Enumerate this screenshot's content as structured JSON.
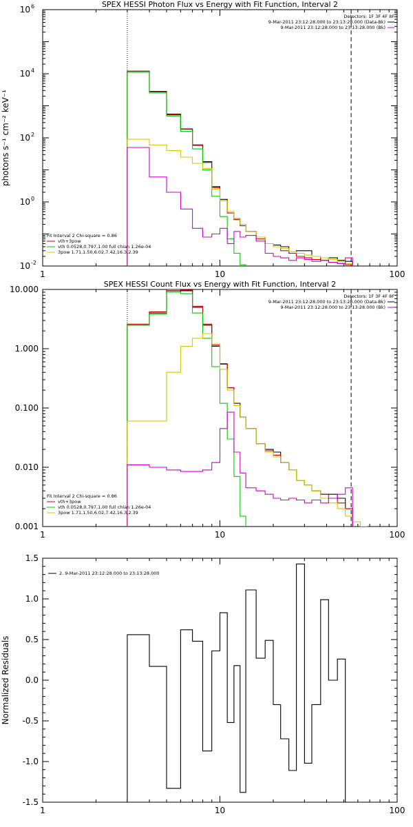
{
  "chart_data": [
    {
      "type": "line",
      "title": "SPEX HESSI Photon Flux vs Energy with Fit Function, Interval 2",
      "ylabel": "photons s⁻¹ cm⁻² keV⁻¹",
      "xlabel": "",
      "x_scale": "log",
      "y_scale": "log",
      "xlim": [
        1,
        100
      ],
      "ylim": [
        0.01,
        1000000
      ],
      "x_ticks": [
        {
          "v": 1,
          "label": "1"
        },
        {
          "v": 10,
          "label": "10"
        },
        {
          "v": 100,
          "label": "100"
        }
      ],
      "y_ticks": [
        {
          "v": 0.01,
          "label": "10",
          "exp": "-2"
        },
        {
          "v": 1,
          "label": "10",
          "exp": "0"
        },
        {
          "v": 100,
          "label": "10",
          "exp": "2"
        },
        {
          "v": 10000,
          "label": "10",
          "exp": "4"
        },
        {
          "v": 1000000,
          "label": "10",
          "exp": "6"
        }
      ],
      "vlines": [
        {
          "x": 3.0,
          "style": "dotted"
        },
        {
          "x": 55,
          "style": "dashed"
        }
      ],
      "legend_right": {
        "header": "Detectors: 1F 3F 4F 8F",
        "entries": [
          {
            "text": "9-Mar-2011 23:12:28.000 to 23:13:28.000 (Data-Bk)",
            "color": "#000000"
          },
          {
            "text": "9-Mar-2011 23:12:28.000 to 23:13:28.000 (Bk)",
            "color": "#cc00cc"
          }
        ]
      },
      "legend_left": {
        "header": "Fit Interval 2   Chi-square = 0.86",
        "entries": [
          {
            "text": "vth+3pow",
            "color": "#cc0000"
          },
          {
            "text": "vth 0.0528,0.797,1.00  full chian 1.26e-04",
            "color": "#00cc00"
          },
          {
            "text": "3pow 1.71,1.50,6.02,7.42,16.3,2.39",
            "color": "#cccc00"
          }
        ]
      },
      "bin_edges": [
        3.0,
        4.0,
        5.0,
        6.0,
        7.0,
        8.0,
        9.0,
        10.0,
        11.0,
        12.0,
        13.0,
        14.0,
        16.0,
        18.0,
        20.0,
        22.0,
        24.5,
        27.0,
        30.0,
        33.0,
        37.0,
        41.0,
        46.0,
        51.0,
        56.0
      ],
      "series": [
        {
          "color": "#000000",
          "values": [
            12000,
            2800,
            550,
            190,
            60,
            18,
            3.0,
            1.2,
            0.5,
            0.3,
            0.2,
            0.12,
            0.08,
            0.05,
            0.045,
            0.04,
            0.025,
            0.03,
            0.03,
            0.02,
            0.015,
            0.018,
            0.015,
            0.014
          ]
        },
        {
          "color": "#cc0000",
          "values": [
            12000,
            2700,
            520,
            185,
            58,
            17,
            2.8,
            1.1,
            0.45,
            0.28,
            0.18,
            0.12,
            0.07,
            0.05,
            0.04,
            0.03,
            0.025,
            0.02,
            0.018,
            0.016,
            0.015,
            0.013,
            0.012,
            0.011
          ]
        },
        {
          "color": "#00cc00",
          "values": [
            11000,
            2500,
            480,
            160,
            45,
            10,
            1.5,
            0.35,
            0.07,
            0.025,
            0.011
          ]
        },
        {
          "color": "#cccc00",
          "values": [
            90,
            60,
            40,
            25,
            16,
            11,
            2.5,
            1.1,
            0.5,
            0.3,
            0.2,
            0.12,
            0.08,
            0.05,
            0.04,
            0.035,
            0.028,
            0.025,
            0.022,
            0.02,
            0.018,
            0.016,
            0.014,
            0.012
          ]
        },
        {
          "color": "#cc00cc",
          "values": [
            50,
            6.0,
            2.0,
            0.6,
            0.15,
            0.08,
            0.1,
            0.15,
            0.05,
            0.12,
            0.08,
            0.09,
            0.06,
            0.025,
            0.02,
            0.018,
            0.015,
            0.018,
            0.016,
            0.014,
            0.015,
            0.013,
            0.012,
            0.018
          ]
        }
      ]
    },
    {
      "type": "line",
      "title": "SPEX HESSI Count Flux vs Energy with Fit Function, Interval 2",
      "ylabel": "",
      "xlabel": "",
      "x_scale": "log",
      "y_scale": "log",
      "xlim": [
        1,
        100
      ],
      "ylim": [
        0.001,
        10.0
      ],
      "x_ticks": [
        {
          "v": 1,
          "label": "1"
        },
        {
          "v": 10,
          "label": "10"
        },
        {
          "v": 100,
          "label": "100"
        }
      ],
      "y_ticks": [
        {
          "v": 0.001,
          "label": "0.001"
        },
        {
          "v": 0.01,
          "label": "0.010"
        },
        {
          "v": 0.1,
          "label": "0.100"
        },
        {
          "v": 1.0,
          "label": "1.000"
        },
        {
          "v": 10.0,
          "label": "10.000"
        }
      ],
      "vlines": [
        {
          "x": 3.0,
          "style": "dotted"
        },
        {
          "x": 55,
          "style": "dashed"
        }
      ],
      "legend_right": {
        "header": "Detectors: 1F 3F 4F 8F",
        "entries": [
          {
            "text": "9-Mar-2011 23:12:28.000 to 23:13:28.000 (Data-Bk)",
            "color": "#000000"
          },
          {
            "text": "9-Mar-2011 23:12:28.000 to 23:13:28.000 (Bk)",
            "color": "#cc00cc"
          }
        ]
      },
      "legend_left": {
        "header": "Fit Interval 2   Chi-square = 0.86",
        "entries": [
          {
            "text": "vth+3pow",
            "color": "#cc0000"
          },
          {
            "text": "vth 0.0528,0.797,1.00  full chian 1.26e-04",
            "color": "#00cc00"
          },
          {
            "text": "3pow 1.71,1.50,6.02,7.42,16.3,2.39",
            "color": "#cccc00"
          }
        ]
      },
      "bin_edges": [
        3.0,
        4.0,
        5.0,
        6.0,
        7.0,
        8.0,
        9.0,
        10.0,
        11.0,
        12.0,
        13.0,
        14.0,
        16.0,
        18.0,
        20.0,
        22.0,
        24.5,
        27.0,
        30.0,
        33.0,
        37.0,
        41.0,
        46.0,
        51.0,
        56.0,
        62.0,
        68.0
      ],
      "series": [
        {
          "color": "#000000",
          "values": [
            2.5,
            4.0,
            9.5,
            9.5,
            5.0,
            2.5,
            1.1,
            0.55,
            0.22,
            0.12,
            0.07,
            0.045,
            0.025,
            0.02,
            0.018,
            0.012,
            0.009,
            0.006,
            0.005,
            0.004,
            0.0035,
            0.0035,
            0.003,
            0.002
          ]
        },
        {
          "color": "#cc0000",
          "values": [
            2.6,
            4.2,
            10.0,
            9.8,
            5.2,
            2.6,
            1.15,
            0.56,
            0.22,
            0.12,
            0.07,
            0.045,
            0.025,
            0.019,
            0.016,
            0.012,
            0.009,
            0.006,
            0.005,
            0.004,
            0.0035,
            0.003,
            0.0025,
            0.002
          ]
        },
        {
          "color": "#00cc00",
          "values": [
            2.5,
            3.8,
            9.0,
            8.5,
            4.0,
            1.5,
            0.5,
            0.12,
            0.03,
            0.007,
            0.0015
          ]
        },
        {
          "color": "#cccc00",
          "values": [
            0.06,
            0.06,
            0.4,
            1.1,
            1.5,
            1.8,
            1.2,
            0.45,
            0.2,
            0.11,
            0.07,
            0.045,
            0.025,
            0.018,
            0.015,
            0.012,
            0.009,
            0.006,
            0.005,
            0.004,
            0.003,
            0.0025,
            0.002,
            0.0015,
            0.0012,
            0.001
          ]
        },
        {
          "color": "#cc00cc",
          "values": [
            0.011,
            0.01,
            0.009,
            0.0085,
            0.0085,
            0.009,
            0.012,
            0.045,
            0.085,
            0.018,
            0.008,
            0.0045,
            0.004,
            0.0035,
            0.003,
            0.0028,
            0.003,
            0.0028,
            0.0025,
            0.0028,
            0.0025,
            0.003,
            0.0035,
            0.0045
          ]
        }
      ]
    },
    {
      "type": "line",
      "title": "",
      "ylabel": "Normalized Residuals",
      "xlabel": "",
      "x_scale": "log",
      "y_scale": "linear",
      "xlim": [
        1,
        100
      ],
      "ylim": [
        -1.5,
        1.5
      ],
      "x_ticks": [
        {
          "v": 1,
          "label": "1"
        },
        {
          "v": 10,
          "label": "10"
        },
        {
          "v": 100,
          "label": "100"
        }
      ],
      "y_ticks": [
        {
          "v": -1.5,
          "label": "-1.5"
        },
        {
          "v": -1.0,
          "label": "-1.0"
        },
        {
          "v": -0.5,
          "label": "-0.5"
        },
        {
          "v": 0.0,
          "label": "0.0"
        },
        {
          "v": 0.5,
          "label": "0.5"
        },
        {
          "v": 1.0,
          "label": "1.0"
        },
        {
          "v": 1.5,
          "label": "1.5"
        }
      ],
      "vlines": [],
      "legend_right": null,
      "legend_left": null,
      "legend_top": {
        "entries": [
          {
            "text": "2.  9-Mar-2011 23:12:28.000 to 23:13:28.000",
            "color": "#000000"
          }
        ]
      },
      "bin_edges": [
        3.0,
        4.0,
        5.0,
        6.0,
        7.0,
        8.0,
        9.0,
        10.0,
        11.0,
        12.0,
        13.0,
        14.0,
        16.0,
        18.0,
        20.0,
        22.0,
        24.5,
        27.0,
        30.0,
        33.0,
        37.0,
        41.0,
        46.0,
        51.0,
        56.0
      ],
      "series": [
        {
          "color": "#000000",
          "values": [
            0.56,
            0.17,
            -1.33,
            0.62,
            0.48,
            -0.87,
            0.36,
            0.83,
            -0.52,
            0.18,
            -1.38,
            1.11,
            0.27,
            0.49,
            -0.3,
            -0.72,
            -1.11,
            1.43,
            -1.02,
            -0.3,
            0.99,
            0.0,
            0.26,
            -1.5
          ]
        }
      ]
    }
  ]
}
